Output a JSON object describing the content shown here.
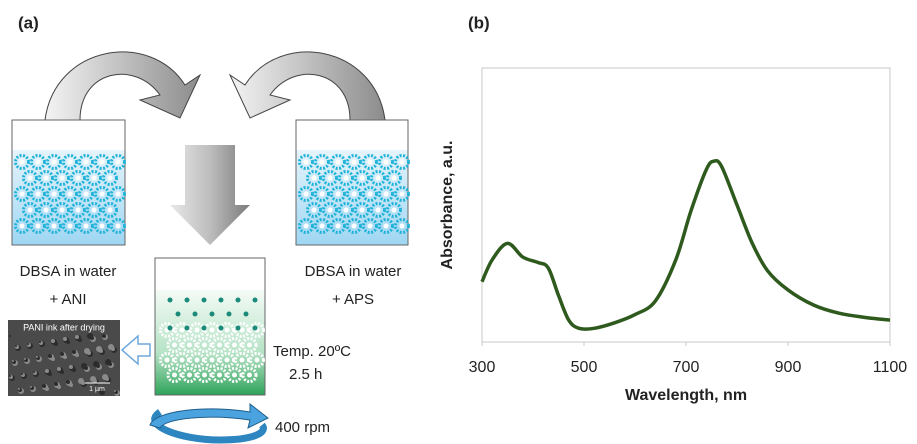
{
  "panel_a": {
    "label": "(a)",
    "left_beaker": {
      "line1": "DBSA in water",
      "line2": "+ ANI"
    },
    "right_beaker": {
      "line1": "DBSA in water",
      "line2": "+ APS"
    },
    "sem_image": {
      "caption": "PANI ink after drying",
      "scale": "1 µm"
    },
    "conditions": {
      "temperature": "Temp. 20ºC",
      "time": "2.5 h"
    },
    "stirring": "400 rpm"
  },
  "panel_b_label": "(b)",
  "chart_data": {
    "type": "line",
    "x_label": "Wavelength, nm",
    "y_label": "Absorbance, a.u.",
    "x": [
      300,
      320,
      350,
      380,
      410,
      430,
      450,
      470,
      490,
      520,
      560,
      600,
      640,
      680,
      710,
      740,
      755,
      770,
      800,
      830,
      860,
      900,
      950,
      1000,
      1050,
      1100
    ],
    "series": [
      {
        "color": "#2f5a1e",
        "values": [
          0.22,
          0.3,
          0.36,
          0.31,
          0.29,
          0.27,
          0.17,
          0.08,
          0.05,
          0.05,
          0.07,
          0.1,
          0.15,
          0.3,
          0.48,
          0.63,
          0.66,
          0.64,
          0.5,
          0.36,
          0.26,
          0.19,
          0.135,
          0.105,
          0.09,
          0.08
        ]
      }
    ],
    "xlim": [
      300,
      1100
    ],
    "xticks": [
      300,
      500,
      700,
      900,
      1100
    ],
    "ylim": [
      0,
      1
    ]
  }
}
